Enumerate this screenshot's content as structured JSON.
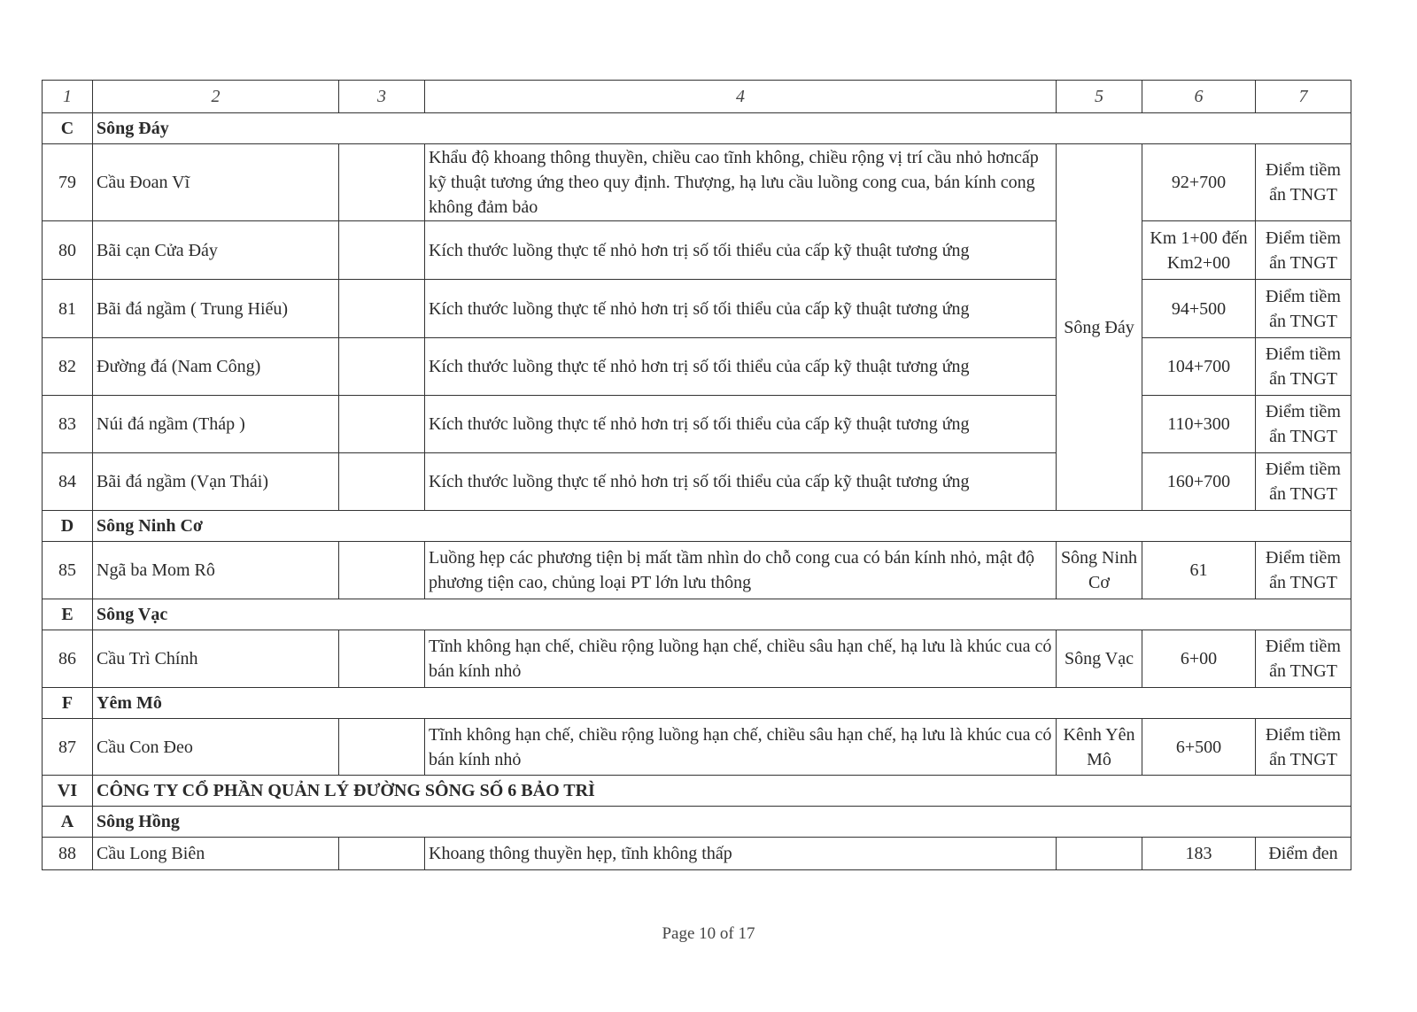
{
  "header": [
    "1",
    "2",
    "3",
    "4",
    "5",
    "6",
    "7"
  ],
  "sections": [
    {
      "code": "C",
      "title": "Sông Đáy",
      "rows": [
        {
          "no": "79",
          "name": "Cầu Đoan Vĩ",
          "col3": "",
          "desc": "Khẩu độ khoang thông thuyền, chiều cao tĩnh không, chiều rộng vị trí cầu nhỏ hơncấp kỹ thuật tương ứng theo quy định. Thượng, hạ lưu cầu luồng cong cua, bán kính cong không đảm bảo",
          "river": "Sông Đáy",
          "km": "92+700",
          "type": "Điểm tiềm ẩn TNGT",
          "h": 87
        },
        {
          "no": "80",
          "name": "Bãi cạn Cửa Đáy",
          "col3": "",
          "desc": "Kích thước luồng thực tế nhỏ hơn trị số tối thiểu của cấp kỹ thuật tương ứng",
          "km": "Km 1+00 đến Km2+00",
          "type": "Điểm tiềm ẩn TNGT",
          "h": 66
        },
        {
          "no": "81",
          "name": "Bãi đá ngầm ( Trung Hiếu)",
          "col3": "",
          "desc": "Kích thước luồng thực tế nhỏ hơn trị số tối thiểu của cấp kỹ thuật tương ứng",
          "km": "94+500",
          "type": "Điểm tiềm ẩn TNGT",
          "h": 66
        },
        {
          "no": "82",
          "name": "Đường đá (Nam Công)",
          "col3": "",
          "desc": "Kích thước luồng thực tế nhỏ hơn trị số tối thiểu của cấp kỹ thuật tương ứng",
          "km": "104+700",
          "type": "Điểm tiềm ẩn TNGT",
          "h": 65
        },
        {
          "no": "83",
          "name": "Núi đá ngầm (Tháp )",
          "col3": "",
          "desc": "Kích thước luồng thực tế nhỏ hơn trị số tối thiểu của cấp kỹ thuật tương ứng",
          "km": "110+300",
          "type": "Điểm tiềm ẩn TNGT",
          "h": 65
        },
        {
          "no": "84",
          "name": "Bãi đá ngầm (Vạn Thái)",
          "col3": "",
          "desc": "Kích thước luồng thực tế nhỏ hơn trị số tối thiểu của cấp kỹ thuật tương ứng",
          "km": "160+700",
          "type": "Điểm tiềm ẩn TNGT",
          "h": 65
        }
      ]
    },
    {
      "code": "D",
      "title": "Sông Ninh Cơ",
      "rows": [
        {
          "no": "85",
          "name": "Ngã ba Mom Rô",
          "col3": "",
          "desc": "Luồng hẹp các phương tiện bị mất tầm nhìn do chỗ cong cua có bán kính nhỏ, mật độ phương tiện cao, chủng loại PT lớn lưu thông",
          "river": "Sông Ninh Cơ",
          "km": "61",
          "type": "Điểm tiềm ẩn TNGT",
          "h": 65
        }
      ]
    },
    {
      "code": "E",
      "title": "Sông Vạc",
      "rows": [
        {
          "no": "86",
          "name": "Cầu Trì Chính",
          "col3": "",
          "desc": "Tĩnh không hạn chế, chiều rộng luồng hạn chế, chiều sâu hạn chế, hạ lưu là khúc cua có bán kính nhỏ",
          "river": "Sông Vạc",
          "km": "6+00",
          "type": "Điểm tiềm ẩn TNGT",
          "h": 65
        }
      ]
    },
    {
      "code": "F",
      "title": "Yêm Mô",
      "rows": [
        {
          "no": "87",
          "name": "Cầu Con Đeo",
          "col3": "",
          "desc": "Tĩnh không hạn chế, chiều rộng luồng hạn chế, chiều sâu hạn chế, hạ lưu là khúc cua có bán kính nhỏ",
          "river": "Kênh Yên Mô",
          "km": "6+500",
          "type": "Điểm tiềm ẩn TNGT",
          "h": 64
        }
      ]
    },
    {
      "code": "VI",
      "title": "CÔNG TY CỔ PHẦN QUẢN LÝ ĐƯỜNG SÔNG SỐ 6 BẢO TRÌ",
      "rows": []
    },
    {
      "code": "A",
      "title": "Sông Hồng",
      "rows": [
        {
          "no": "88",
          "name": "Cầu Long Biên",
          "col3": "",
          "desc": "Khoang thông thuyền hẹp, tĩnh không thấp",
          "river": "",
          "km": "183",
          "type": "Điểm đen",
          "h": 37
        }
      ]
    }
  ],
  "footer": "Page 10 of 17"
}
